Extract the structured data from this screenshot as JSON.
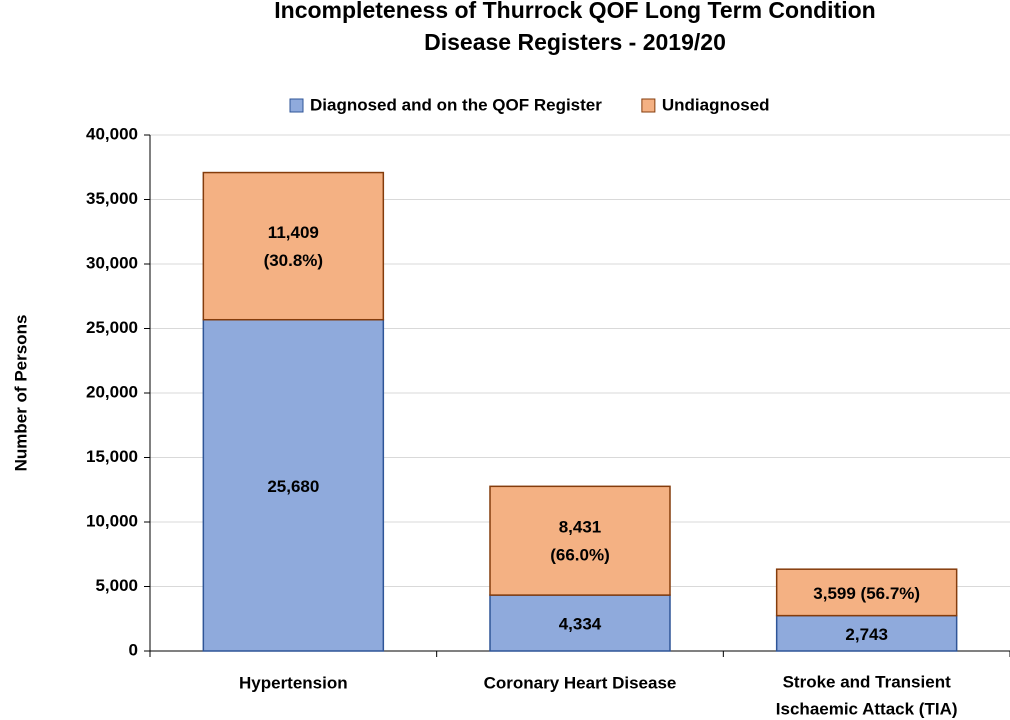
{
  "chart_data": {
    "type": "stacked_bar",
    "title": "Incompleteness of Thurrock QOF Long Term Condition Disease Registers - 2019/20",
    "y_label": "Number of Persons",
    "categories": [
      "Hypertension",
      "Coronary Heart Disease",
      "Stroke and Transient Ischaemic Attack (TIA)"
    ],
    "series": [
      {
        "name": "Diagnosed and on the QOF Register",
        "color": "#8faadc",
        "edge": "#2f5597",
        "values": [
          25680,
          4334,
          2743
        ],
        "value_labels": [
          "25,680",
          "4,334",
          "2,743"
        ]
      },
      {
        "name": "Undiagnosed",
        "color": "#f4b183",
        "edge": "#843c0c",
        "values": [
          11409,
          8431,
          3599
        ],
        "value_labels": [
          "11,409 (30.8%)",
          "8,431 (66.0%)",
          "3,599 (56.7%)"
        ]
      }
    ],
    "ylim": [
      0,
      40000
    ],
    "yticks": [
      0,
      {
        "value": 5000,
        "label": "5,000"
      },
      {
        "value": 10000,
        "label": "10,000"
      },
      {
        "value": 15000,
        "label": "15,000"
      },
      {
        "value": 20000,
        "label": "20,000"
      },
      {
        "value": 25000,
        "label": "25,000"
      },
      {
        "value": 30000,
        "label": "30,000"
      },
      {
        "value": 35000,
        "label": "35,000"
      },
      {
        "value": 40000,
        "label": "40,000"
      }
    ],
    "grid": true,
    "legend": "top"
  }
}
